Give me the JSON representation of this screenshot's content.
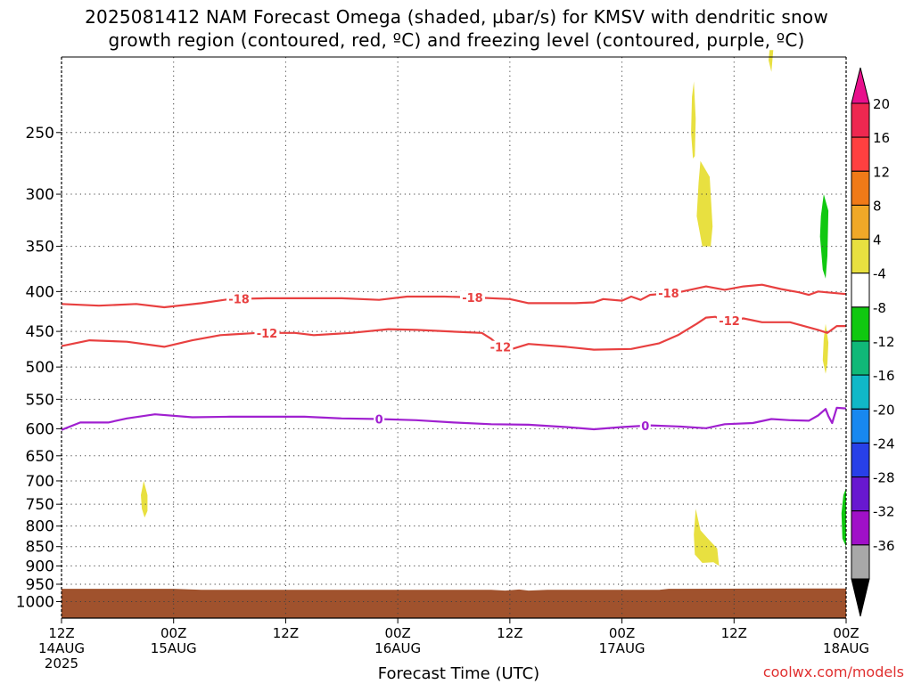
{
  "chart_data": {
    "type": "heatmap",
    "title": "2025081412 NAM Forecast Omega (shaded, µbar/s) for KMSV with dendritic snow",
    "subtitle": "growth region (contoured, red, ºC) and freezing level (contoured, purple, ºC)",
    "xlabel": "Forecast Time (UTC)",
    "ylabel": "",
    "credit": "coolwx.com/models",
    "x_ticks": [
      {
        "t": 0,
        "l1": "12Z",
        "l2": "14AUG",
        "l3": "2025"
      },
      {
        "t": 12,
        "l1": "00Z",
        "l2": "15AUG"
      },
      {
        "t": 24,
        "l1": "12Z"
      },
      {
        "t": 36,
        "l1": "00Z",
        "l2": "16AUG"
      },
      {
        "t": 48,
        "l1": "12Z"
      },
      {
        "t": 60,
        "l1": "00Z",
        "l2": "17AUG"
      },
      {
        "t": 72,
        "l1": "12Z"
      },
      {
        "t": 84,
        "l1": "00Z",
        "l2": "18AUG"
      }
    ],
    "xlim": [
      0,
      84
    ],
    "y_ticks": [
      250,
      300,
      350,
      400,
      450,
      500,
      550,
      600,
      650,
      700,
      750,
      800,
      850,
      900,
      950,
      1000
    ],
    "ylim": [
      200,
      1050
    ],
    "y_scale": "log",
    "grid": true,
    "colorbar": {
      "labels": [
        "20",
        "16",
        "12",
        "8",
        "4",
        "-4",
        "-8",
        "-12",
        "-16",
        "-20",
        "-24",
        "-28",
        "-32",
        "-36"
      ],
      "colors": [
        "#ee2850",
        "#ff4040",
        "#f07a18",
        "#f0a828",
        "#e8e040",
        "#ffffff",
        "#10c810",
        "#10b878",
        "#10b8c8",
        "#1888f0",
        "#2840e8",
        "#6818d0",
        "#a010c8",
        "#a8a8a8"
      ],
      "top_arrow_color": "#e8108c",
      "bottom_arrow_color": "#000000"
    },
    "surface_fill_color": "#a0522d",
    "surface_pressure": [
      [
        0,
        963
      ],
      [
        12,
        963
      ],
      [
        15,
        966
      ],
      [
        30,
        966
      ],
      [
        46,
        966
      ],
      [
        47.5,
        968
      ],
      [
        49,
        965
      ],
      [
        50,
        968
      ],
      [
        52,
        966
      ],
      [
        64,
        966
      ],
      [
        65,
        963
      ],
      [
        80,
        962
      ],
      [
        84,
        962
      ]
    ],
    "omega_areas": [
      {
        "value": 4,
        "color": "#e8e040",
        "points": [
          [
            8.8,
            700
          ],
          [
            9.2,
            730
          ],
          [
            9.2,
            765
          ],
          [
            8.9,
            780
          ],
          [
            8.6,
            760
          ],
          [
            8.5,
            730
          ]
        ]
      },
      {
        "value": 4,
        "color": "#e8e040",
        "points": [
          [
            67.7,
            215
          ],
          [
            67.9,
            240
          ],
          [
            67.8,
            268
          ],
          [
            67.6,
            270
          ],
          [
            67.4,
            250
          ],
          [
            67.5,
            225
          ]
        ]
      },
      {
        "value": 4,
        "color": "#e8e040",
        "points": [
          [
            68.4,
            272
          ],
          [
            69.4,
            285
          ],
          [
            69.7,
            330
          ],
          [
            69.5,
            350
          ],
          [
            68.6,
            350
          ],
          [
            68.0,
            320
          ],
          [
            68.2,
            290
          ]
        ]
      },
      {
        "value": 4,
        "color": "#e8e040",
        "points": [
          [
            75.8,
            196
          ],
          [
            76.2,
            196
          ],
          [
            76.0,
            209
          ],
          [
            75.7,
            202
          ]
        ]
      },
      {
        "value": 4,
        "color": "#e8e040",
        "points": [
          [
            81.8,
            440
          ],
          [
            82.1,
            465
          ],
          [
            82.0,
            495
          ],
          [
            81.8,
            510
          ],
          [
            81.5,
            490
          ],
          [
            81.6,
            460
          ]
        ]
      },
      {
        "value": 4,
        "color": "#e8e040",
        "points": [
          [
            67.9,
            760
          ],
          [
            68.4,
            810
          ],
          [
            69.2,
            830
          ],
          [
            70.2,
            855
          ],
          [
            70.4,
            900
          ],
          [
            69.8,
            890
          ],
          [
            68.6,
            892
          ],
          [
            67.8,
            870
          ],
          [
            67.7,
            820
          ]
        ]
      },
      {
        "value": -4,
        "color": "#10c810",
        "points": [
          [
            81.6,
            300
          ],
          [
            82.1,
            315
          ],
          [
            82.0,
            360
          ],
          [
            81.8,
            385
          ],
          [
            81.5,
            375
          ],
          [
            81.2,
            340
          ],
          [
            81.3,
            320
          ]
        ]
      },
      {
        "value": -4,
        "color": "#10c810",
        "points": [
          [
            84,
            715
          ],
          [
            84,
            850
          ],
          [
            83.6,
            830
          ],
          [
            83.5,
            770
          ],
          [
            83.7,
            730
          ]
        ]
      }
    ],
    "contours": [
      {
        "level": "-18",
        "color": "#e84040",
        "label_at": [
          19,
          44,
          65
        ],
        "points": [
          [
            0,
            415
          ],
          [
            4,
            417
          ],
          [
            8,
            415
          ],
          [
            11,
            419
          ],
          [
            15,
            414
          ],
          [
            18,
            409
          ],
          [
            22,
            408
          ],
          [
            26,
            408
          ],
          [
            30,
            408
          ],
          [
            34,
            410
          ],
          [
            37,
            406
          ],
          [
            41,
            406
          ],
          [
            44,
            407
          ],
          [
            48,
            409
          ],
          [
            50,
            414
          ],
          [
            55,
            414
          ],
          [
            57,
            413
          ],
          [
            58,
            409
          ],
          [
            60,
            411
          ],
          [
            61,
            406
          ],
          [
            62,
            410
          ],
          [
            63,
            404
          ],
          [
            66,
            401
          ],
          [
            69,
            394
          ],
          [
            71,
            398
          ],
          [
            73,
            394
          ],
          [
            75,
            392
          ],
          [
            77,
            397
          ],
          [
            79,
            401
          ],
          [
            80,
            404
          ],
          [
            81,
            400
          ],
          [
            82,
            401
          ],
          [
            84,
            403
          ]
        ]
      },
      {
        "level": "-12",
        "color": "#e84040",
        "label_at": [
          22,
          47,
          71.5
        ],
        "points": [
          [
            0,
            470
          ],
          [
            3,
            462
          ],
          [
            7,
            464
          ],
          [
            11,
            471
          ],
          [
            14,
            462
          ],
          [
            17,
            455
          ],
          [
            21,
            452
          ],
          [
            25,
            452
          ],
          [
            27,
            455
          ],
          [
            31,
            452
          ],
          [
            35,
            447
          ],
          [
            38,
            448
          ],
          [
            43,
            451
          ],
          [
            45,
            452
          ],
          [
            46,
            460
          ],
          [
            47.5,
            477
          ],
          [
            50,
            467
          ],
          [
            54,
            471
          ],
          [
            57,
            475
          ],
          [
            61,
            474
          ],
          [
            64,
            466
          ],
          [
            66,
            455
          ],
          [
            68,
            440
          ],
          [
            69,
            432
          ],
          [
            70,
            431
          ],
          [
            71,
            437
          ],
          [
            73,
            433
          ],
          [
            75,
            438
          ],
          [
            78,
            438
          ],
          [
            81,
            448
          ],
          [
            82,
            452
          ],
          [
            83,
            443
          ],
          [
            84,
            443
          ]
        ]
      },
      {
        "level": "0",
        "color": "#a020d0",
        "label_at": [
          34,
          62.5
        ],
        "points": [
          [
            0,
            602
          ],
          [
            2,
            589
          ],
          [
            5,
            589
          ],
          [
            7,
            582
          ],
          [
            10,
            575
          ],
          [
            14,
            580
          ],
          [
            18,
            579
          ],
          [
            22,
            579
          ],
          [
            26,
            579
          ],
          [
            30,
            582
          ],
          [
            34,
            583
          ],
          [
            38,
            585
          ],
          [
            42,
            589
          ],
          [
            46,
            592
          ],
          [
            50,
            593
          ],
          [
            54,
            597
          ],
          [
            57,
            601
          ],
          [
            60,
            597
          ],
          [
            63,
            594
          ],
          [
            66,
            596
          ],
          [
            69,
            599
          ],
          [
            71,
            592
          ],
          [
            74,
            590
          ],
          [
            76,
            583
          ],
          [
            78,
            585
          ],
          [
            80,
            586
          ],
          [
            81,
            577
          ],
          [
            81.8,
            566
          ],
          [
            82.1,
            578
          ],
          [
            82.5,
            590
          ],
          [
            83,
            564
          ],
          [
            84,
            565
          ]
        ]
      }
    ]
  }
}
